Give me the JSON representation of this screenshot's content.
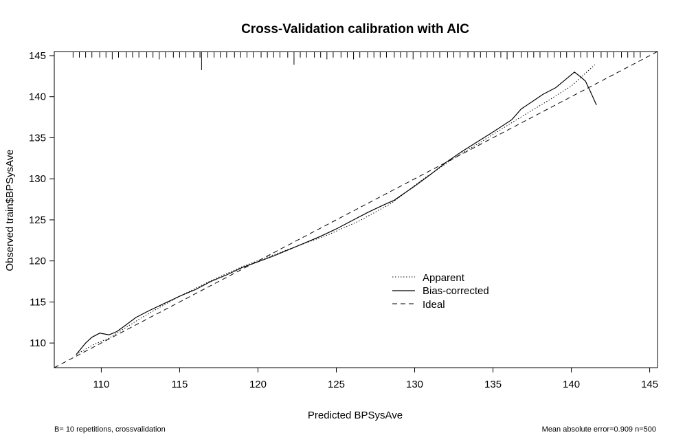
{
  "chart_data": {
    "type": "line",
    "title": "Cross-Validation calibration with AIC",
    "xlabel": "Predicted BPSysAve",
    "ylabel": "Observed train$BPSysAve",
    "xlim": [
      107,
      145.5
    ],
    "ylim": [
      107,
      145.5
    ],
    "x_ticks": [
      110,
      115,
      120,
      125,
      130,
      135,
      140,
      145
    ],
    "y_ticks": [
      110,
      115,
      120,
      125,
      130,
      135,
      140,
      145
    ],
    "grid": false,
    "legend_position": "center-right",
    "series": [
      {
        "name": "Apparent",
        "style": "dotted",
        "points": [
          [
            108.4,
            108.6
          ],
          [
            109.5,
            109.8
          ],
          [
            110.5,
            110.6
          ],
          [
            111.5,
            111.8
          ],
          [
            112.5,
            113.0
          ],
          [
            113.5,
            114.1
          ],
          [
            115.0,
            115.7
          ],
          [
            117.0,
            117.6
          ],
          [
            119.0,
            119.3
          ],
          [
            120.5,
            120.4
          ],
          [
            122.5,
            121.8
          ],
          [
            124.5,
            123.2
          ],
          [
            126.5,
            124.9
          ],
          [
            128.5,
            127.0
          ],
          [
            130.5,
            129.9
          ],
          [
            132.5,
            132.5
          ],
          [
            134.5,
            134.8
          ],
          [
            136.5,
            137.2
          ],
          [
            138.5,
            139.5
          ],
          [
            140.0,
            141.3
          ],
          [
            141.5,
            143.9
          ]
        ]
      },
      {
        "name": "Bias-corrected",
        "style": "solid",
        "points": [
          [
            108.4,
            108.6
          ],
          [
            109.0,
            110.0
          ],
          [
            109.4,
            110.7
          ],
          [
            109.9,
            111.2
          ],
          [
            110.2,
            111.1
          ],
          [
            110.5,
            111.0
          ],
          [
            111.0,
            111.4
          ],
          [
            111.5,
            112.1
          ],
          [
            112.2,
            113.1
          ],
          [
            113.0,
            113.9
          ],
          [
            114.0,
            114.8
          ],
          [
            115.0,
            115.7
          ],
          [
            116.0,
            116.5
          ],
          [
            117.0,
            117.5
          ],
          [
            118.0,
            118.3
          ],
          [
            119.0,
            119.2
          ],
          [
            120.0,
            119.9
          ],
          [
            121.0,
            120.6
          ],
          [
            122.0,
            121.4
          ],
          [
            123.0,
            122.2
          ],
          [
            124.0,
            123.0
          ],
          [
            125.0,
            123.9
          ],
          [
            126.0,
            124.9
          ],
          [
            127.0,
            125.9
          ],
          [
            128.0,
            126.8
          ],
          [
            128.7,
            127.4
          ],
          [
            130.0,
            129.1
          ],
          [
            131.0,
            130.5
          ],
          [
            132.0,
            132.0
          ],
          [
            133.0,
            133.3
          ],
          [
            134.0,
            134.5
          ],
          [
            135.0,
            135.7
          ],
          [
            136.2,
            137.2
          ],
          [
            136.8,
            138.5
          ],
          [
            137.5,
            139.4
          ],
          [
            138.2,
            140.3
          ],
          [
            139.0,
            141.1
          ],
          [
            139.7,
            142.2
          ],
          [
            140.2,
            143.0
          ],
          [
            140.6,
            142.4
          ],
          [
            140.9,
            141.9
          ],
          [
            141.2,
            140.7
          ],
          [
            141.6,
            139.0
          ]
        ]
      },
      {
        "name": "Ideal",
        "style": "dashed",
        "points": [
          [
            107,
            107
          ],
          [
            145.5,
            145.5
          ]
        ]
      }
    ],
    "legend": [
      "Apparent",
      "Bias-corrected",
      "Ideal"
    ],
    "rug_values": [
      108.2,
      108.6,
      109.0,
      109.4,
      109.9,
      110.3,
      110.7,
      111.1,
      111.6,
      112.0,
      112.4,
      112.9,
      113.3,
      113.7,
      114.1,
      114.6,
      115.0,
      115.4,
      115.9,
      116.3,
      116.4,
      116.8,
      117.2,
      117.6,
      118.0,
      118.5,
      118.9,
      119.3,
      119.7,
      120.2,
      120.6,
      121.0,
      121.4,
      121.9,
      122.3,
      122.7,
      123.1,
      123.6,
      124.0,
      124.4,
      124.8,
      125.3,
      125.7,
      126.1,
      126.5,
      127.0,
      127.4,
      127.8,
      128.2,
      128.7,
      129.1,
      129.5,
      129.9,
      130.4,
      130.8,
      131.2,
      131.6,
      132.1,
      132.5,
      132.9,
      133.4,
      133.8,
      134.2,
      134.6,
      135.1,
      135.5,
      135.9,
      136.3,
      136.8,
      137.2,
      137.6,
      138.0,
      138.5,
      138.9,
      139.3,
      139.7,
      140.2,
      140.6,
      141.0,
      141.4,
      141.9,
      142.3,
      142.7,
      143.2,
      143.6,
      144.0,
      144.4
    ],
    "rug_lengths": [
      3,
      3,
      3,
      3,
      3,
      3,
      4,
      3,
      3,
      3,
      3,
      3,
      3,
      4,
      3,
      3,
      3,
      3,
      3,
      3,
      10,
      3,
      3,
      3,
      3,
      3,
      3,
      3,
      3,
      3,
      3,
      3,
      3,
      3,
      7,
      3,
      3,
      3,
      3,
      4,
      3,
      3,
      3,
      4,
      3,
      3,
      3,
      3,
      3,
      3,
      3,
      3,
      4,
      3,
      3,
      3,
      3,
      3,
      3,
      3,
      3,
      3,
      3,
      3,
      3,
      3,
      4,
      3,
      3,
      3,
      3,
      3,
      3,
      3,
      3,
      3,
      3,
      3,
      3,
      3,
      3,
      3,
      3,
      3,
      3,
      3,
      3
    ]
  },
  "legend_labels": {
    "apparent": "Apparent",
    "bias_corrected": "Bias-corrected",
    "ideal": "Ideal"
  },
  "footnotes": {
    "left": "B= 10 repetitions, crossvalidation",
    "right": "Mean absolute error=0.909 n=500"
  }
}
